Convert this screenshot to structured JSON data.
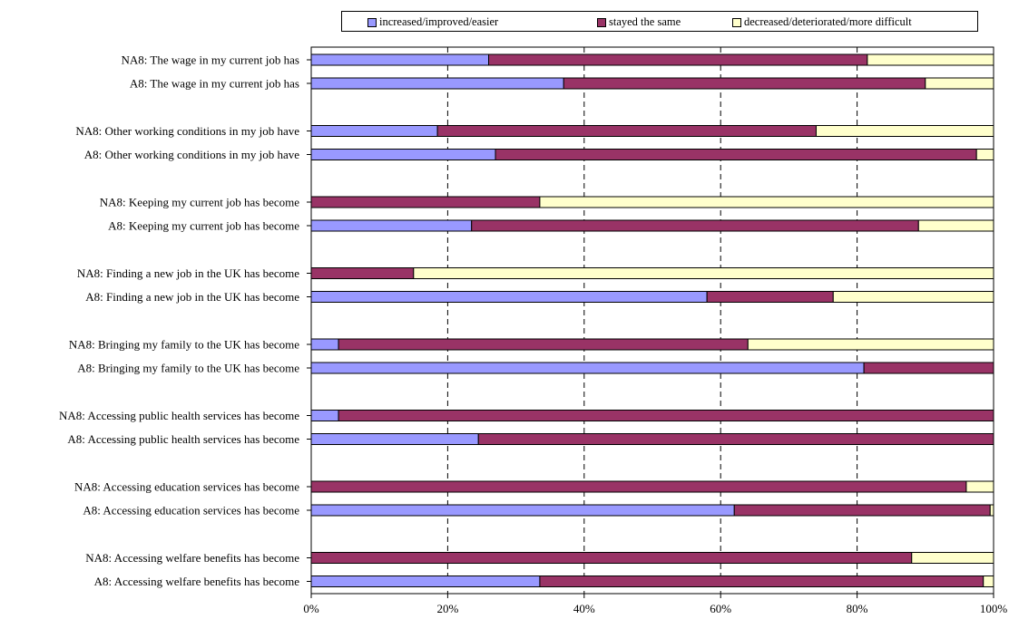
{
  "chart_data": {
    "type": "bar",
    "orientation": "horizontal",
    "stacked": "percent",
    "xlim": [
      0,
      100
    ],
    "x_tick_labels": [
      "0%",
      "20%",
      "40%",
      "60%",
      "80%",
      "100%"
    ],
    "x_ticks": [
      0,
      20,
      40,
      60,
      80,
      100
    ],
    "legend_position": "top",
    "grid": "vertical dashed",
    "categories": [
      "NA8: The wage in my current job has",
      "A8: The wage in my current job has",
      "NA8: Other working conditions in my job have",
      "A8: Other working conditions in my job have",
      "NA8: Keeping my current job has become",
      "A8: Keeping my current job has become",
      "NA8: Finding a new job in the UK has become",
      "A8: Finding a new job in the UK has become",
      "NA8: Bringing my family to the UK has become",
      "A8: Bringing my family to the UK has become",
      "NA8: Accessing public health services has become",
      "A8: Accessing public health services has become",
      "NA8: Accessing education services has become",
      "A8: Accessing education services has become",
      "NA8: Accessing welfare benefits has become",
      "A8: Accessing welfare benefits has become"
    ],
    "series": [
      {
        "name": "increased/improved/easier",
        "color": "#9999ff",
        "values": [
          26,
          37,
          18.5,
          27,
          0,
          23.5,
          0,
          58,
          4,
          81,
          4,
          24.5,
          0,
          62,
          0,
          33.5
        ]
      },
      {
        "name": "stayed the same",
        "color": "#993366",
        "values": [
          55.5,
          53,
          55.5,
          70.5,
          33.5,
          65.5,
          15,
          18.5,
          60,
          19,
          96,
          75.5,
          96,
          37.5,
          88,
          65
        ]
      },
      {
        "name": "decreased/deteriorated/more difficult",
        "color": "#ffffcc",
        "values": [
          18.5,
          10,
          26,
          2.5,
          66.5,
          11,
          85,
          23.5,
          36,
          0,
          0,
          0,
          4,
          0.5,
          12,
          1.5
        ]
      }
    ]
  }
}
